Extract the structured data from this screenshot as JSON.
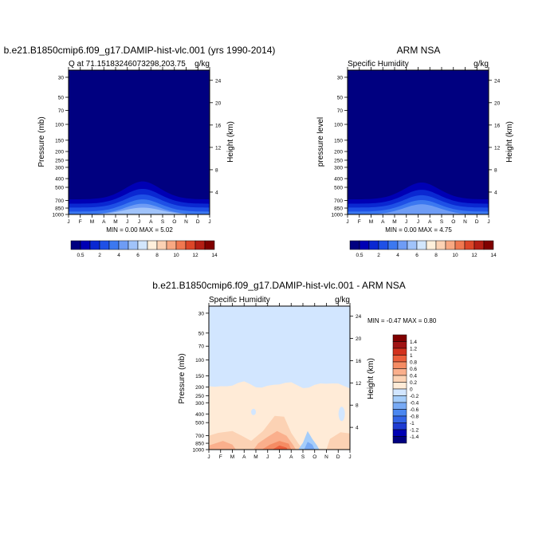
{
  "colors": {
    "model_scale": [
      "#000080",
      "#0000b4",
      "#0a28d2",
      "#1e50e6",
      "#3c78f0",
      "#6e9cf5",
      "#a0c3fa",
      "#d2e6fc",
      "#fff0dc",
      "#fcd2b4",
      "#f8a882",
      "#f07850",
      "#dc4628",
      "#b41e14",
      "#800000"
    ],
    "diff_scale": [
      "#000080",
      "#0000b4",
      "#1e3cd2",
      "#3264e6",
      "#4b87f0",
      "#78aaf5",
      "#a5cdfa",
      "#d2e6ff",
      "#ffebd7",
      "#fcd2b4",
      "#faaf8c",
      "#f58c64",
      "#eb5f3c",
      "#d2321e",
      "#a01414",
      "#800000"
    ]
  },
  "charts": [
    {
      "id": "model",
      "title": "b.e21.B1850cmip6.f09_g17.DAMIP-hist-vlc.001 (yrs 1990-2014)",
      "left_label": "Q at 71.15183246073298,203.75",
      "right_label": "g/kg",
      "ylabel": "Pressure (mb)",
      "ylabel_right": "Height (km)",
      "stats": "MIN =   0.00 MAX =   5.02",
      "chart_data": {
        "type": "heatmap",
        "x": [
          "J",
          "F",
          "M",
          "A",
          "M",
          "J",
          "J",
          "A",
          "S",
          "O",
          "N",
          "D",
          "J"
        ],
        "y_pressure_ticks": [
          30,
          50,
          70,
          100,
          150,
          200,
          250,
          300,
          400,
          500,
          700,
          850,
          1000
        ],
        "y_height_ticks": [
          24,
          20,
          16,
          12,
          8,
          4
        ],
        "ylim_mb": [
          1000,
          25
        ],
        "min": 0.0,
        "max": 5.02,
        "contour_levels": [
          0.5,
          1,
          1.5,
          2,
          3,
          4
        ]
      },
      "colorbar": {
        "labels": [
          "0.5",
          "2",
          "4",
          "6",
          "8",
          "10",
          "12",
          "14"
        ]
      }
    },
    {
      "id": "obs",
      "title": "ARM NSA",
      "left_label": "Specific Humidity",
      "right_label": "g/kg",
      "ylabel": "pressure level",
      "ylabel_right": "Height (km)",
      "stats": "MIN =   0.00 MAX =   4.75",
      "chart_data": {
        "type": "heatmap",
        "x": [
          "J",
          "F",
          "M",
          "A",
          "M",
          "J",
          "J",
          "A",
          "S",
          "O",
          "N",
          "D",
          "J"
        ],
        "y_pressure_ticks": [
          30,
          50,
          70,
          100,
          150,
          200,
          250,
          300,
          400,
          500,
          700,
          850,
          1000
        ],
        "y_height_ticks": [
          24,
          20,
          16,
          12,
          8,
          4
        ],
        "ylim_mb": [
          1000,
          25
        ],
        "min": 0.0,
        "max": 4.75,
        "contour_levels": [
          0.5,
          1,
          1.5,
          2,
          3,
          4
        ]
      },
      "colorbar": {
        "labels": [
          "0.5",
          "2",
          "4",
          "6",
          "8",
          "10",
          "12",
          "14"
        ]
      }
    },
    {
      "id": "diff",
      "title": "b.e21.B1850cmip6.f09_g17.DAMIP-hist-vlc.001 - ARM NSA",
      "left_label": "Specific Humidity",
      "right_label": "g/kg",
      "ylabel": "Pressure (mb)",
      "ylabel_right": "Height (km)",
      "stats": "MIN =  -0.47 MAX =   0.80",
      "chart_data": {
        "type": "heatmap",
        "x": [
          "J",
          "F",
          "M",
          "A",
          "M",
          "J",
          "J",
          "A",
          "S",
          "O",
          "N",
          "D",
          "J"
        ],
        "y_pressure_ticks": [
          30,
          50,
          70,
          100,
          150,
          200,
          250,
          300,
          400,
          500,
          700,
          850,
          1000
        ],
        "y_height_ticks": [
          24,
          20,
          16,
          12,
          8,
          4
        ],
        "ylim_mb": [
          1000,
          25
        ],
        "min": -0.47,
        "max": 0.8
      },
      "colorbar": {
        "labels": [
          "1.4",
          "1.2",
          "1",
          "0.8",
          "0.6",
          "0.4",
          "0.2",
          "0",
          "-0.2",
          "-0.4",
          "-0.6",
          "-0.8",
          "-1",
          "-1.2",
          "-1.4"
        ]
      }
    }
  ]
}
